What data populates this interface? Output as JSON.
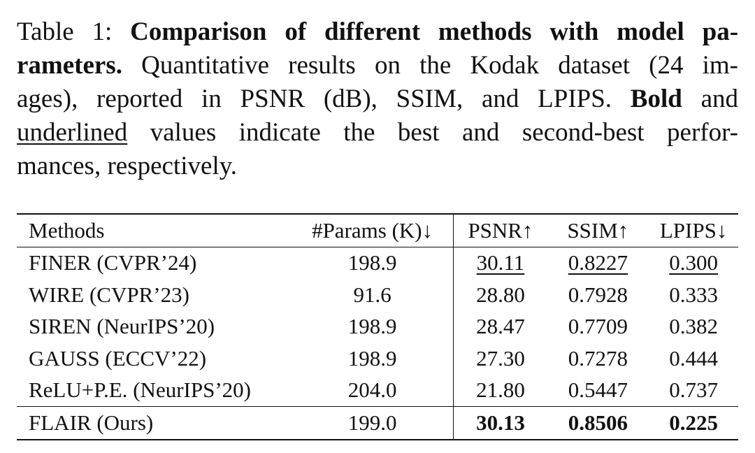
{
  "caption": {
    "label": "Table 1:",
    "bold_title_line1": "Comparison of different methods with model pa-",
    "bold_title_line2": "rameters.",
    "text_line2": "Quantitative results on the Kodak dataset (24 im-",
    "text_line3a": "ages), reported in PSNR (dB), SSIM, and LPIPS.",
    "bold_word": "Bold",
    "text_line3b": "and",
    "underlined_word": "underlined",
    "text_line4": "values indicate the best and second-best perfor-",
    "text_line5": "mances, respectively."
  },
  "table": {
    "headers": {
      "method": "Methods",
      "params": "#Params (K)↓",
      "psnr": "PSNR↑",
      "ssim": "SSIM↑",
      "lpips": "LPIPS↓"
    },
    "rows": [
      {
        "method": "FINER (CVPR’24)",
        "params": "198.9",
        "psnr": "30.11",
        "ssim": "0.8227",
        "lpips": "0.300"
      },
      {
        "method": "WIRE (CVPR’23)",
        "params": "91.6",
        "psnr": "28.80",
        "ssim": "0.7928",
        "lpips": "0.333"
      },
      {
        "method": "SIREN (NeurIPS’20)",
        "params": "198.9",
        "psnr": "28.47",
        "ssim": "0.7709",
        "lpips": "0.382"
      },
      {
        "method": "GAUSS (ECCV’22)",
        "params": "198.9",
        "psnr": "27.30",
        "ssim": "0.7278",
        "lpips": "0.444"
      },
      {
        "method": "ReLU+P.E. (NeurIPS’20)",
        "params": "204.0",
        "psnr": "21.80",
        "ssim": "0.5447",
        "lpips": "0.737"
      },
      {
        "method": "FLAIR (Ours)",
        "params": "199.0",
        "psnr": "30.13",
        "ssim": "0.8506",
        "lpips": "0.225"
      }
    ]
  }
}
